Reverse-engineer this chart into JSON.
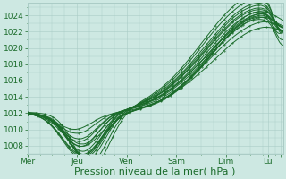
{
  "xlabel": "Pression niveau de la mer( hPa )",
  "ylim": [
    1007,
    1025.5
  ],
  "yticks": [
    1008,
    1010,
    1012,
    1014,
    1016,
    1018,
    1020,
    1022,
    1024
  ],
  "xtick_positions": [
    0,
    1,
    2,
    3,
    4,
    4.85,
    5.1
  ],
  "xtick_labels": [
    "Mer",
    "Jeu",
    "Ven",
    "Sam",
    "Dim",
    "Lu",
    ""
  ],
  "xlim": [
    0,
    5.15
  ],
  "background_color": "#cde8e2",
  "grid_color": "#aaccc6",
  "line_color": "#1a6b2a",
  "xlabel_fontsize": 8,
  "tick_fontsize": 6.5
}
